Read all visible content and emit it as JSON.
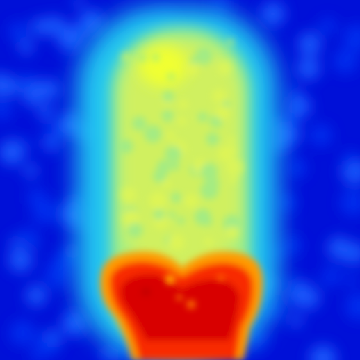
{
  "image": {
    "kind": "heatmap",
    "colormap": "jet",
    "colors": {
      "low": "#0000c8",
      "low_mid": "#0050ff",
      "mid": "#40e0f0",
      "mid_high": "#e8ff40",
      "high": "#ff2000",
      "peak": "#cc0000"
    }
  }
}
